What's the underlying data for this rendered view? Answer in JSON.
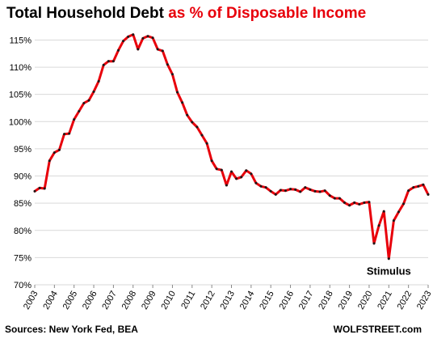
{
  "title_part1": "Total Household Debt",
  "title_part2": "as % of Disposable Income",
  "source": "Sources: New York Fed, BEA",
  "brand": "WOLFSTREET.com",
  "annotation": "Stimulus",
  "colors": {
    "line": "#e8000b",
    "marker": "#1a1a1a",
    "grid": "#d9d9d9",
    "title_accent": "#e8000b"
  },
  "chart_data": {
    "type": "line",
    "title": "Total Household Debt as % of Disposable Income",
    "xlabel": "",
    "ylabel": "",
    "ylim": [
      70,
      117
    ],
    "xlim": [
      2003,
      2023
    ],
    "y_ticks": [
      "70%",
      "75%",
      "80%",
      "85%",
      "90%",
      "95%",
      "100%",
      "105%",
      "110%",
      "115%"
    ],
    "y_tick_values": [
      70,
      75,
      80,
      85,
      90,
      95,
      100,
      105,
      110,
      115
    ],
    "x_ticks": [
      "2003",
      "2004",
      "2005",
      "2006",
      "2007",
      "2008",
      "2009",
      "2010",
      "2011",
      "2012",
      "2013",
      "2014",
      "2015",
      "2016",
      "2017",
      "2018",
      "2019",
      "2020",
      "2021",
      "2022",
      "2023"
    ],
    "x_tick_values": [
      2003,
      2004,
      2005,
      2006,
      2007,
      2008,
      2009,
      2010,
      2011,
      2012,
      2013,
      2014,
      2015,
      2016,
      2017,
      2018,
      2019,
      2020,
      2021,
      2022,
      2023
    ],
    "grid": "horizontal",
    "series": [
      {
        "x": [
          2003.0,
          2003.25,
          2003.5,
          2003.75,
          2004.0,
          2004.25,
          2004.5,
          2004.75,
          2005.0,
          2005.25,
          2005.5,
          2005.75,
          2006.0,
          2006.25,
          2006.5,
          2006.75,
          2007.0,
          2007.25,
          2007.5,
          2007.75,
          2008.0,
          2008.25,
          2008.5,
          2008.75,
          2009.0,
          2009.25,
          2009.5,
          2009.75,
          2010.0,
          2010.25,
          2010.5,
          2010.75,
          2011.0,
          2011.25,
          2011.5,
          2011.75,
          2012.0,
          2012.25,
          2012.5,
          2012.75,
          2013.0,
          2013.25,
          2013.5,
          2013.75,
          2014.0,
          2014.25,
          2014.5,
          2014.75,
          2015.0,
          2015.25,
          2015.5,
          2015.75,
          2016.0,
          2016.25,
          2016.5,
          2016.75,
          2017.0,
          2017.25,
          2017.5,
          2017.75,
          2018.0,
          2018.25,
          2018.5,
          2018.75,
          2019.0,
          2019.25,
          2019.5,
          2019.75,
          2020.0,
          2020.25,
          2020.5,
          2020.75,
          2021.0,
          2021.25,
          2021.5,
          2021.75,
          2022.0,
          2022.25,
          2022.5,
          2022.75,
          2023.0
        ],
        "values": [
          87.2,
          87.8,
          87.7,
          92.8,
          94.3,
          94.8,
          97.7,
          97.8,
          100.4,
          101.9,
          103.4,
          103.9,
          105.5,
          107.4,
          110.4,
          111.1,
          111.1,
          113.1,
          114.8,
          115.6,
          116.0,
          113.3,
          115.3,
          115.7,
          115.4,
          113.3,
          113.0,
          110.5,
          108.7,
          105.4,
          103.5,
          101.2,
          99.9,
          99.0,
          97.5,
          96.0,
          92.8,
          91.3,
          91.1,
          88.3,
          90.8,
          89.5,
          89.8,
          91.0,
          90.4,
          88.7,
          88.1,
          87.9,
          87.2,
          86.6,
          87.4,
          87.3,
          87.6,
          87.5,
          87.1,
          87.9,
          87.5,
          87.2,
          87.1,
          87.3,
          86.4,
          85.9,
          85.9,
          85.1,
          84.6,
          85.1,
          84.8,
          85.1,
          85.2,
          77.6,
          80.9,
          83.5,
          74.8,
          81.8,
          83.4,
          84.9,
          87.3,
          87.9,
          88.1,
          88.4,
          86.6
        ]
      }
    ],
    "annotations": [
      {
        "text": "Stimulus",
        "x": 2021.0,
        "y": 74.8
      }
    ]
  }
}
